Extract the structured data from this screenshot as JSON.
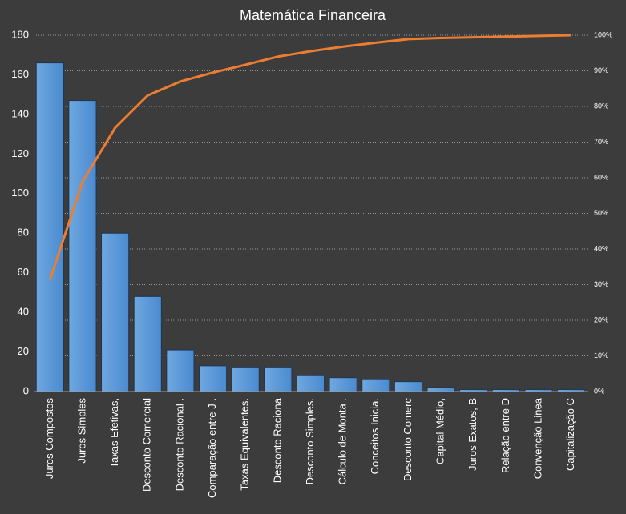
{
  "chart_data": {
    "type": "pareto",
    "title": "Matemática Financeira",
    "categories": [
      "Juros Compostos",
      "Juros Simples",
      "Taxas Efetivas,",
      "Desconto Comercial",
      "Desconto Racional .",
      "Comparação entre J .",
      "Taxas Equivalentes.",
      "Desconto Raciona",
      "Desconto Simples.",
      "Cálculo de Monta .",
      "Conceitos Inicia.",
      "Desconto Comerc",
      "Capital Médio,",
      "Juros Exatos, B",
      "Relação entre D",
      "Convenção Linea",
      "Capitalização C"
    ],
    "series": [
      {
        "type": "bar",
        "color": "#5b9bd5",
        "values": [
          166,
          147,
          80,
          48,
          21,
          13,
          12,
          12,
          8,
          7,
          6,
          5,
          2,
          1,
          1,
          1,
          1
        ]
      },
      {
        "type": "line",
        "axis": "y2",
        "color": "#ed7d31",
        "values": [
          31.3,
          58.9,
          74.0,
          83.1,
          87.0,
          89.5,
          91.7,
          94.0,
          95.5,
          96.8,
          97.9,
          98.9,
          99.2,
          99.4,
          99.6,
          99.8,
          100
        ]
      }
    ],
    "ylim": [
      0,
      180
    ],
    "yticks": [
      0,
      20,
      40,
      60,
      80,
      100,
      120,
      140,
      160,
      180
    ],
    "y2lim": [
      0,
      100
    ],
    "y2ticks": [
      {
        "value": 0,
        "label": "0%"
      },
      {
        "value": 10,
        "label": "10%"
      },
      {
        "value": 20,
        "label": "20%"
      },
      {
        "value": 30,
        "label": "30%"
      },
      {
        "value": 40,
        "label": "40%"
      },
      {
        "value": 50,
        "label": "50%"
      },
      {
        "value": 60,
        "label": "60%"
      },
      {
        "value": 70,
        "label": "70%"
      },
      {
        "value": 80,
        "label": "80%"
      },
      {
        "value": 90,
        "label": "90%"
      },
      {
        "value": 100,
        "label": "100%"
      }
    ],
    "grid": true
  }
}
